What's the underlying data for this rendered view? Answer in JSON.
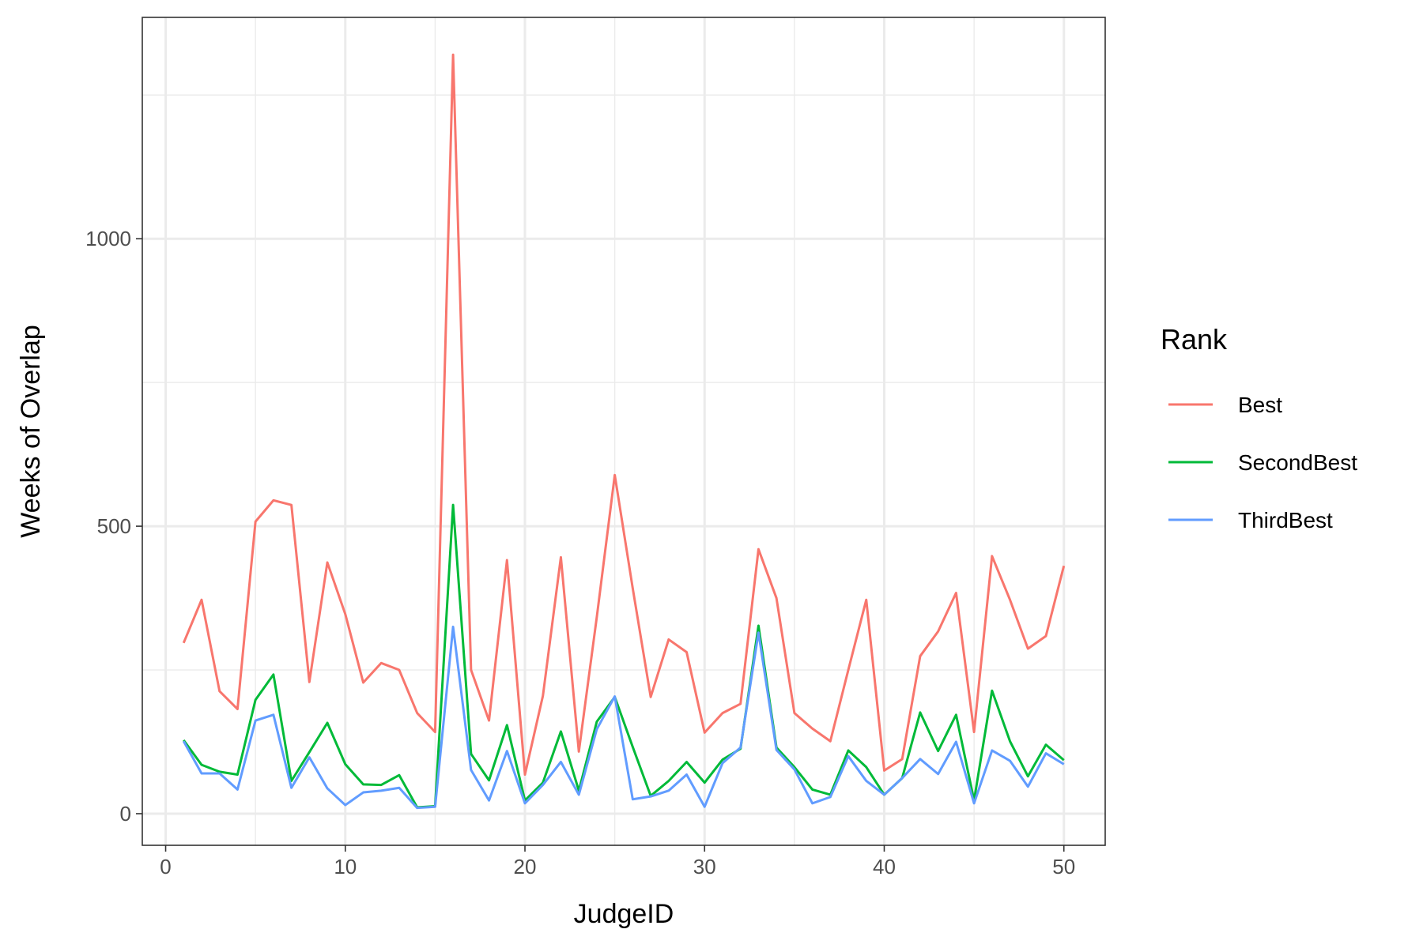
{
  "chart_data": {
    "type": "line",
    "xlabel": "JudgeID",
    "ylabel": "Weeks of Overlap",
    "xlim": [
      -1.3,
      52.3
    ],
    "ylim": [
      -55,
      1385
    ],
    "x_ticks": [
      0,
      10,
      20,
      30,
      40,
      50
    ],
    "y_ticks": [
      0,
      500,
      1000
    ],
    "grid": true,
    "legend": {
      "title": "Rank",
      "position": "right"
    },
    "x": [
      1,
      2,
      3,
      4,
      5,
      6,
      7,
      8,
      9,
      10,
      11,
      12,
      13,
      14,
      15,
      16,
      17,
      18,
      19,
      20,
      21,
      22,
      23,
      24,
      25,
      26,
      27,
      28,
      29,
      30,
      31,
      32,
      33,
      34,
      35,
      36,
      37,
      38,
      39,
      40,
      41,
      42,
      43,
      44,
      45,
      46,
      47,
      48,
      49,
      50
    ],
    "series": [
      {
        "name": "Best",
        "color": "#F8766D",
        "values": [
          297,
          372,
          213,
          182,
          508,
          545,
          537,
          229,
          437,
          347,
          228,
          262,
          250,
          175,
          142,
          1320,
          250,
          162,
          441,
          68,
          205,
          446,
          108,
          342,
          589,
          392,
          203,
          303,
          281,
          141,
          175,
          191,
          460,
          375,
          175,
          148,
          126,
          250,
          372,
          75,
          95,
          274,
          317,
          384,
          142,
          448,
          372,
          287,
          309,
          431
        ]
      },
      {
        "name": "SecondBest",
        "color": "#00BA38",
        "values": [
          128,
          85,
          73,
          68,
          198,
          242,
          57,
          107,
          158,
          86,
          51,
          50,
          67,
          11,
          13,
          537,
          104,
          58,
          154,
          23,
          54,
          143,
          40,
          160,
          203,
          116,
          31,
          57,
          90,
          54,
          94,
          113,
          327,
          115,
          81,
          42,
          33,
          110,
          81,
          33,
          62,
          176,
          109,
          172,
          23,
          214,
          126,
          65,
          120,
          93
        ]
      },
      {
        "name": "ThirdBest",
        "color": "#619CFF",
        "values": [
          126,
          70,
          70,
          42,
          162,
          172,
          45,
          98,
          44,
          15,
          37,
          40,
          45,
          10,
          12,
          325,
          76,
          23,
          109,
          18,
          50,
          90,
          33,
          147,
          204,
          25,
          30,
          40,
          68,
          12,
          88,
          115,
          315,
          111,
          77,
          18,
          29,
          100,
          57,
          33,
          62,
          95,
          69,
          125,
          18,
          110,
          92,
          47,
          105,
          86
        ]
      }
    ]
  }
}
